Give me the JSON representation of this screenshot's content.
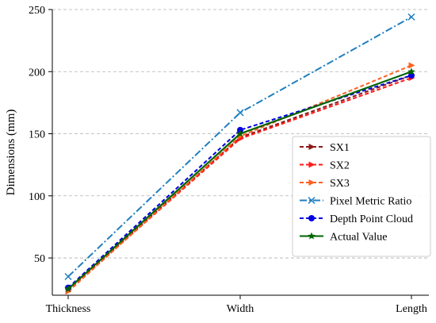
{
  "chart_data": {
    "type": "line",
    "categories": [
      "Thickness",
      "Width",
      "Length"
    ],
    "ylabel": "Dimensions (mm)",
    "xlabel": "",
    "ylim": [
      20,
      250
    ],
    "yticks": [
      50,
      100,
      150,
      200,
      250
    ],
    "grid": "y-dashed",
    "legend_position": "center-right",
    "series": [
      {
        "name": "SX1",
        "values": [
          25,
          147,
          197
        ],
        "color": "#8b1a1a",
        "dash": "dashed",
        "marker": "triangle-right"
      },
      {
        "name": "SX2",
        "values": [
          24,
          146,
          195
        ],
        "color": "#ff1a1a",
        "dash": "dashed",
        "marker": "triangle-right"
      },
      {
        "name": "SX3",
        "values": [
          23,
          148,
          205
        ],
        "color": "#ff6020",
        "dash": "dashed",
        "marker": "triangle-right"
      },
      {
        "name": "Pixel Metric Ratio",
        "values": [
          35,
          167,
          244
        ],
        "color": "#1f7fbf",
        "dash": "dashdot",
        "marker": "x"
      },
      {
        "name": "Depth Point Cloud",
        "values": [
          26,
          153,
          197
        ],
        "color": "#0000e0",
        "dash": "dashed",
        "marker": "circle"
      },
      {
        "name": "Actual Value",
        "values": [
          25,
          150,
          200
        ],
        "color": "#006400",
        "dash": "solid",
        "marker": "star"
      }
    ]
  }
}
